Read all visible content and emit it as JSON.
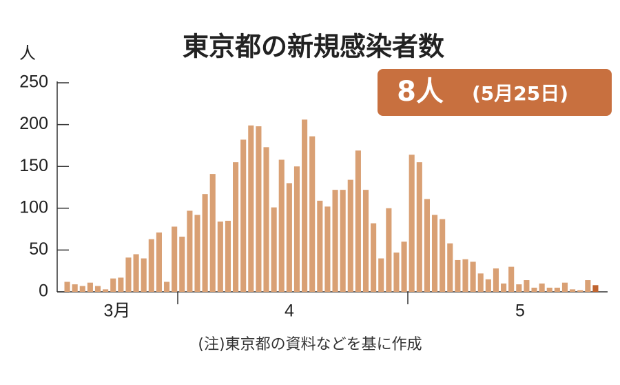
{
  "chart_data": {
    "type": "bar",
    "title": "東京都の新規感染者数",
    "y_label": "人",
    "badge": {
      "value": "8人",
      "date": "(5月25日)"
    },
    "note": "(注)東京都の資料などを基に作成",
    "month_labels": [
      "3月",
      "4",
      "5"
    ],
    "categories": [
      null,
      null,
      null,
      null,
      null,
      null,
      null,
      null,
      null,
      null,
      null,
      null,
      null,
      null,
      null,
      null,
      null,
      null,
      null,
      null,
      null,
      null,
      null,
      null,
      null,
      null,
      null,
      null,
      null,
      null,
      null,
      null,
      null,
      null,
      null,
      null,
      null,
      null,
      null,
      null,
      null,
      null,
      null,
      null,
      null,
      null,
      null,
      null,
      null,
      null,
      null,
      null,
      null,
      null,
      null,
      null,
      null,
      null,
      null,
      null,
      null,
      null,
      null,
      null,
      null,
      null,
      null,
      null,
      null,
      null
    ],
    "values": [
      12,
      9,
      7,
      11,
      7,
      3,
      16,
      17,
      41,
      45,
      40,
      63,
      71,
      12,
      78,
      66,
      97,
      92,
      117,
      141,
      84,
      85,
      155,
      182,
      199,
      198,
      173,
      101,
      158,
      130,
      150,
      206,
      186,
      109,
      102,
      122,
      122,
      134,
      169,
      122,
      82,
      40,
      100,
      47,
      60,
      164,
      155,
      111,
      92,
      87,
      58,
      38,
      39,
      36,
      22,
      15,
      28,
      10,
      30,
      9,
      14,
      5,
      10,
      5,
      5,
      11,
      3,
      2,
      14,
      8
    ],
    "color": "#d9a074",
    "highlight_color": "#c0642f",
    "ylim": [
      0,
      250
    ],
    "yticks": [
      0,
      50,
      100,
      150,
      200,
      250
    ]
  }
}
